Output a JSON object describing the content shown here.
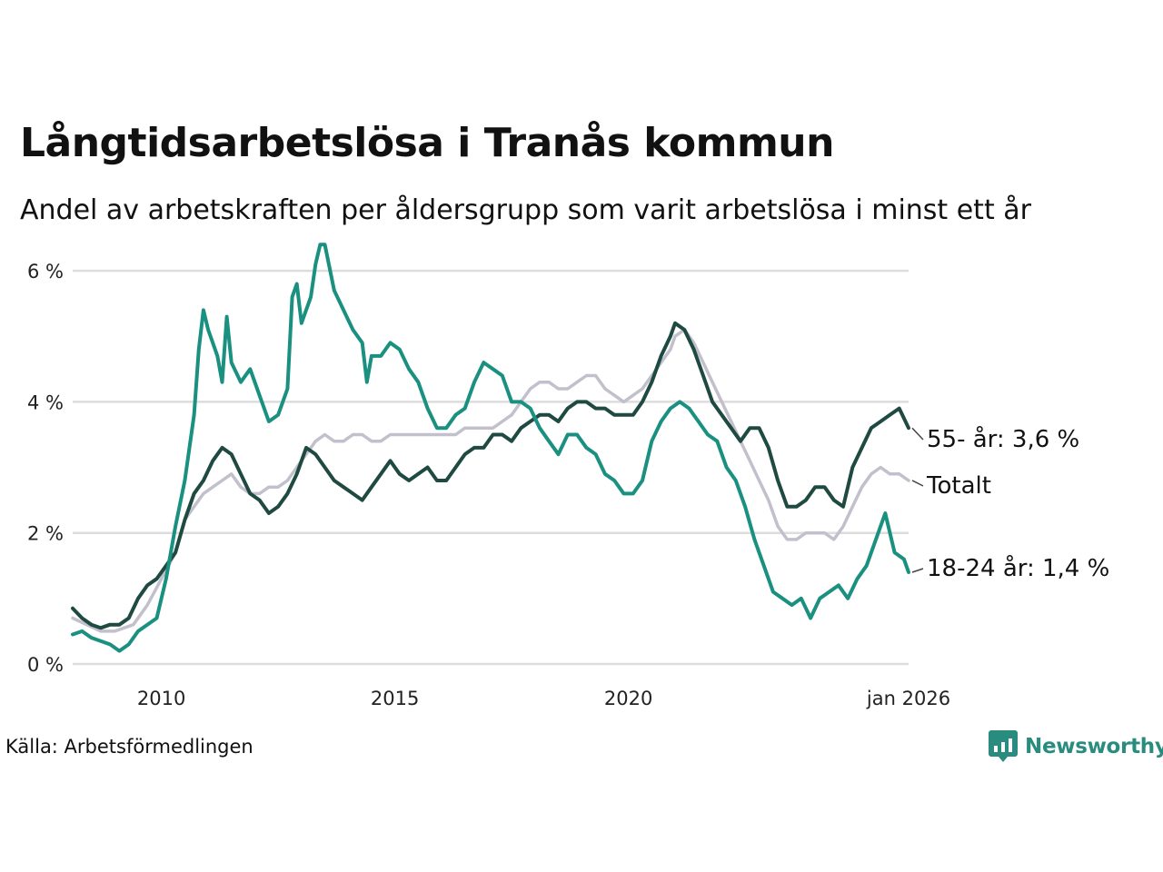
{
  "title": "Långtidsarbetslösa i Tranås kommun",
  "subtitle": "Andel av arbetskraften per åldersgrupp som varit arbetslösa i minst ett år",
  "source": "Källa: Arbetsförmedlingen",
  "brand": "Newsworthy",
  "colors": {
    "total": "#c2c0cc",
    "age55": "#1f4a42",
    "age1824": "#1a9080",
    "grid": "#dddddd",
    "brand": "#2a8c7e"
  },
  "chart_data": {
    "type": "line",
    "ylim": [
      0,
      6.5
    ],
    "xlim": [
      2008.1,
      2026.0
    ],
    "yticks": [
      0,
      2,
      4,
      6
    ],
    "ytick_labels": [
      "0 %",
      "2 %",
      "4 %",
      "6 %"
    ],
    "xticks": [
      2010,
      2015,
      2020,
      2026
    ],
    "xtick_labels": [
      "2010",
      "2015",
      "2020",
      "jan 2026"
    ],
    "grid": true,
    "series": [
      {
        "name": "Totalt",
        "key": "total",
        "label": "Totalt",
        "points": [
          [
            2008.1,
            0.7
          ],
          [
            2008.4,
            0.6
          ],
          [
            2008.7,
            0.5
          ],
          [
            2009.0,
            0.5
          ],
          [
            2009.4,
            0.6
          ],
          [
            2009.7,
            0.9
          ],
          [
            2010.0,
            1.3
          ],
          [
            2010.3,
            1.7
          ],
          [
            2010.5,
            2.2
          ],
          [
            2010.7,
            2.4
          ],
          [
            2010.9,
            2.6
          ],
          [
            2011.1,
            2.7
          ],
          [
            2011.3,
            2.8
          ],
          [
            2011.5,
            2.9
          ],
          [
            2011.7,
            2.7
          ],
          [
            2011.9,
            2.6
          ],
          [
            2012.1,
            2.6
          ],
          [
            2012.3,
            2.7
          ],
          [
            2012.5,
            2.7
          ],
          [
            2012.7,
            2.8
          ],
          [
            2012.9,
            3.0
          ],
          [
            2013.1,
            3.2
          ],
          [
            2013.3,
            3.4
          ],
          [
            2013.5,
            3.5
          ],
          [
            2013.7,
            3.4
          ],
          [
            2013.9,
            3.4
          ],
          [
            2014.1,
            3.5
          ],
          [
            2014.3,
            3.5
          ],
          [
            2014.5,
            3.4
          ],
          [
            2014.7,
            3.4
          ],
          [
            2014.9,
            3.5
          ],
          [
            2015.1,
            3.5
          ],
          [
            2015.3,
            3.5
          ],
          [
            2015.5,
            3.5
          ],
          [
            2015.7,
            3.5
          ],
          [
            2015.9,
            3.5
          ],
          [
            2016.1,
            3.5
          ],
          [
            2016.3,
            3.5
          ],
          [
            2016.5,
            3.6
          ],
          [
            2016.7,
            3.6
          ],
          [
            2016.9,
            3.6
          ],
          [
            2017.1,
            3.6
          ],
          [
            2017.3,
            3.7
          ],
          [
            2017.5,
            3.8
          ],
          [
            2017.7,
            4.0
          ],
          [
            2017.9,
            4.2
          ],
          [
            2018.1,
            4.3
          ],
          [
            2018.3,
            4.3
          ],
          [
            2018.5,
            4.2
          ],
          [
            2018.7,
            4.2
          ],
          [
            2018.9,
            4.3
          ],
          [
            2019.1,
            4.4
          ],
          [
            2019.3,
            4.4
          ],
          [
            2019.5,
            4.2
          ],
          [
            2019.7,
            4.1
          ],
          [
            2019.9,
            4.0
          ],
          [
            2020.1,
            4.1
          ],
          [
            2020.3,
            4.2
          ],
          [
            2020.5,
            4.4
          ],
          [
            2020.7,
            4.6
          ],
          [
            2020.9,
            4.8
          ],
          [
            2021.0,
            5.0
          ],
          [
            2021.2,
            5.1
          ],
          [
            2021.4,
            4.9
          ],
          [
            2021.6,
            4.6
          ],
          [
            2021.8,
            4.3
          ],
          [
            2022.0,
            4.0
          ],
          [
            2022.2,
            3.7
          ],
          [
            2022.4,
            3.4
          ],
          [
            2022.6,
            3.1
          ],
          [
            2022.8,
            2.8
          ],
          [
            2023.0,
            2.5
          ],
          [
            2023.2,
            2.1
          ],
          [
            2023.4,
            1.9
          ],
          [
            2023.6,
            1.9
          ],
          [
            2023.8,
            2.0
          ],
          [
            2024.0,
            2.0
          ],
          [
            2024.2,
            2.0
          ],
          [
            2024.4,
            1.9
          ],
          [
            2024.6,
            2.1
          ],
          [
            2024.8,
            2.4
          ],
          [
            2025.0,
            2.7
          ],
          [
            2025.2,
            2.9
          ],
          [
            2025.4,
            3.0
          ],
          [
            2025.6,
            2.9
          ],
          [
            2025.8,
            2.9
          ],
          [
            2026.0,
            2.8
          ]
        ]
      },
      {
        "name": "55- år",
        "key": "age55",
        "label": "55- år: 3,6 %",
        "points": [
          [
            2008.1,
            0.85
          ],
          [
            2008.3,
            0.7
          ],
          [
            2008.5,
            0.6
          ],
          [
            2008.7,
            0.55
          ],
          [
            2008.9,
            0.6
          ],
          [
            2009.1,
            0.6
          ],
          [
            2009.3,
            0.7
          ],
          [
            2009.5,
            1.0
          ],
          [
            2009.7,
            1.2
          ],
          [
            2009.9,
            1.3
          ],
          [
            2010.1,
            1.5
          ],
          [
            2010.3,
            1.7
          ],
          [
            2010.5,
            2.2
          ],
          [
            2010.7,
            2.6
          ],
          [
            2010.9,
            2.8
          ],
          [
            2011.1,
            3.1
          ],
          [
            2011.3,
            3.3
          ],
          [
            2011.5,
            3.2
          ],
          [
            2011.7,
            2.9
          ],
          [
            2011.9,
            2.6
          ],
          [
            2012.1,
            2.5
          ],
          [
            2012.3,
            2.3
          ],
          [
            2012.5,
            2.4
          ],
          [
            2012.7,
            2.6
          ],
          [
            2012.9,
            2.9
          ],
          [
            2013.1,
            3.3
          ],
          [
            2013.3,
            3.2
          ],
          [
            2013.5,
            3.0
          ],
          [
            2013.7,
            2.8
          ],
          [
            2013.9,
            2.7
          ],
          [
            2014.1,
            2.6
          ],
          [
            2014.3,
            2.5
          ],
          [
            2014.5,
            2.7
          ],
          [
            2014.7,
            2.9
          ],
          [
            2014.9,
            3.1
          ],
          [
            2015.1,
            2.9
          ],
          [
            2015.3,
            2.8
          ],
          [
            2015.5,
            2.9
          ],
          [
            2015.7,
            3.0
          ],
          [
            2015.9,
            2.8
          ],
          [
            2016.1,
            2.8
          ],
          [
            2016.3,
            3.0
          ],
          [
            2016.5,
            3.2
          ],
          [
            2016.7,
            3.3
          ],
          [
            2016.9,
            3.3
          ],
          [
            2017.1,
            3.5
          ],
          [
            2017.3,
            3.5
          ],
          [
            2017.5,
            3.4
          ],
          [
            2017.7,
            3.6
          ],
          [
            2017.9,
            3.7
          ],
          [
            2018.1,
            3.8
          ],
          [
            2018.3,
            3.8
          ],
          [
            2018.5,
            3.7
          ],
          [
            2018.7,
            3.9
          ],
          [
            2018.9,
            4.0
          ],
          [
            2019.1,
            4.0
          ],
          [
            2019.3,
            3.9
          ],
          [
            2019.5,
            3.9
          ],
          [
            2019.7,
            3.8
          ],
          [
            2019.9,
            3.8
          ],
          [
            2020.1,
            3.8
          ],
          [
            2020.3,
            4.0
          ],
          [
            2020.5,
            4.3
          ],
          [
            2020.7,
            4.7
          ],
          [
            2020.9,
            5.0
          ],
          [
            2021.0,
            5.2
          ],
          [
            2021.2,
            5.1
          ],
          [
            2021.4,
            4.8
          ],
          [
            2021.6,
            4.4
          ],
          [
            2021.8,
            4.0
          ],
          [
            2022.0,
            3.8
          ],
          [
            2022.2,
            3.6
          ],
          [
            2022.4,
            3.4
          ],
          [
            2022.6,
            3.6
          ],
          [
            2022.8,
            3.6
          ],
          [
            2023.0,
            3.3
          ],
          [
            2023.2,
            2.8
          ],
          [
            2023.4,
            2.4
          ],
          [
            2023.6,
            2.4
          ],
          [
            2023.8,
            2.5
          ],
          [
            2024.0,
            2.7
          ],
          [
            2024.2,
            2.7
          ],
          [
            2024.4,
            2.5
          ],
          [
            2024.6,
            2.4
          ],
          [
            2024.8,
            3.0
          ],
          [
            2025.0,
            3.3
          ],
          [
            2025.2,
            3.6
          ],
          [
            2025.4,
            3.7
          ],
          [
            2025.6,
            3.8
          ],
          [
            2025.8,
            3.9
          ],
          [
            2026.0,
            3.6
          ]
        ]
      },
      {
        "name": "18-24 år",
        "key": "age1824",
        "label": "18-24 år: 1,4 %",
        "points": [
          [
            2008.1,
            0.45
          ],
          [
            2008.3,
            0.5
          ],
          [
            2008.5,
            0.4
          ],
          [
            2008.7,
            0.35
          ],
          [
            2008.9,
            0.3
          ],
          [
            2009.1,
            0.2
          ],
          [
            2009.3,
            0.3
          ],
          [
            2009.5,
            0.5
          ],
          [
            2009.7,
            0.6
          ],
          [
            2009.9,
            0.7
          ],
          [
            2010.1,
            1.3
          ],
          [
            2010.3,
            2.1
          ],
          [
            2010.5,
            2.8
          ],
          [
            2010.7,
            3.8
          ],
          [
            2010.8,
            4.8
          ],
          [
            2010.9,
            5.4
          ],
          [
            2011.0,
            5.1
          ],
          [
            2011.2,
            4.7
          ],
          [
            2011.3,
            4.3
          ],
          [
            2011.4,
            5.3
          ],
          [
            2011.5,
            4.6
          ],
          [
            2011.7,
            4.3
          ],
          [
            2011.9,
            4.5
          ],
          [
            2012.1,
            4.1
          ],
          [
            2012.3,
            3.7
          ],
          [
            2012.5,
            3.8
          ],
          [
            2012.7,
            4.2
          ],
          [
            2012.8,
            5.6
          ],
          [
            2012.9,
            5.8
          ],
          [
            2013.0,
            5.2
          ],
          [
            2013.2,
            5.6
          ],
          [
            2013.3,
            6.1
          ],
          [
            2013.4,
            6.4
          ],
          [
            2013.5,
            6.4
          ],
          [
            2013.7,
            5.7
          ],
          [
            2013.9,
            5.4
          ],
          [
            2014.1,
            5.1
          ],
          [
            2014.3,
            4.9
          ],
          [
            2014.4,
            4.3
          ],
          [
            2014.5,
            4.7
          ],
          [
            2014.7,
            4.7
          ],
          [
            2014.9,
            4.9
          ],
          [
            2015.1,
            4.8
          ],
          [
            2015.3,
            4.5
          ],
          [
            2015.5,
            4.3
          ],
          [
            2015.7,
            3.9
          ],
          [
            2015.9,
            3.6
          ],
          [
            2016.1,
            3.6
          ],
          [
            2016.3,
            3.8
          ],
          [
            2016.5,
            3.9
          ],
          [
            2016.7,
            4.3
          ],
          [
            2016.9,
            4.6
          ],
          [
            2017.1,
            4.5
          ],
          [
            2017.3,
            4.4
          ],
          [
            2017.5,
            4.0
          ],
          [
            2017.7,
            4.0
          ],
          [
            2017.9,
            3.9
          ],
          [
            2018.1,
            3.6
          ],
          [
            2018.3,
            3.4
          ],
          [
            2018.5,
            3.2
          ],
          [
            2018.7,
            3.5
          ],
          [
            2018.9,
            3.5
          ],
          [
            2019.1,
            3.3
          ],
          [
            2019.3,
            3.2
          ],
          [
            2019.5,
            2.9
          ],
          [
            2019.7,
            2.8
          ],
          [
            2019.9,
            2.6
          ],
          [
            2020.1,
            2.6
          ],
          [
            2020.3,
            2.8
          ],
          [
            2020.5,
            3.4
          ],
          [
            2020.7,
            3.7
          ],
          [
            2020.9,
            3.9
          ],
          [
            2021.1,
            4.0
          ],
          [
            2021.3,
            3.9
          ],
          [
            2021.5,
            3.7
          ],
          [
            2021.7,
            3.5
          ],
          [
            2021.9,
            3.4
          ],
          [
            2022.1,
            3.0
          ],
          [
            2022.3,
            2.8
          ],
          [
            2022.5,
            2.4
          ],
          [
            2022.7,
            1.9
          ],
          [
            2022.9,
            1.5
          ],
          [
            2023.1,
            1.1
          ],
          [
            2023.3,
            1.0
          ],
          [
            2023.5,
            0.9
          ],
          [
            2023.7,
            1.0
          ],
          [
            2023.9,
            0.7
          ],
          [
            2024.1,
            1.0
          ],
          [
            2024.3,
            1.1
          ],
          [
            2024.5,
            1.2
          ],
          [
            2024.7,
            1.0
          ],
          [
            2024.9,
            1.3
          ],
          [
            2025.1,
            1.5
          ],
          [
            2025.3,
            1.9
          ],
          [
            2025.5,
            2.3
          ],
          [
            2025.7,
            1.7
          ],
          [
            2025.9,
            1.6
          ],
          [
            2026.0,
            1.4
          ]
        ]
      }
    ]
  }
}
